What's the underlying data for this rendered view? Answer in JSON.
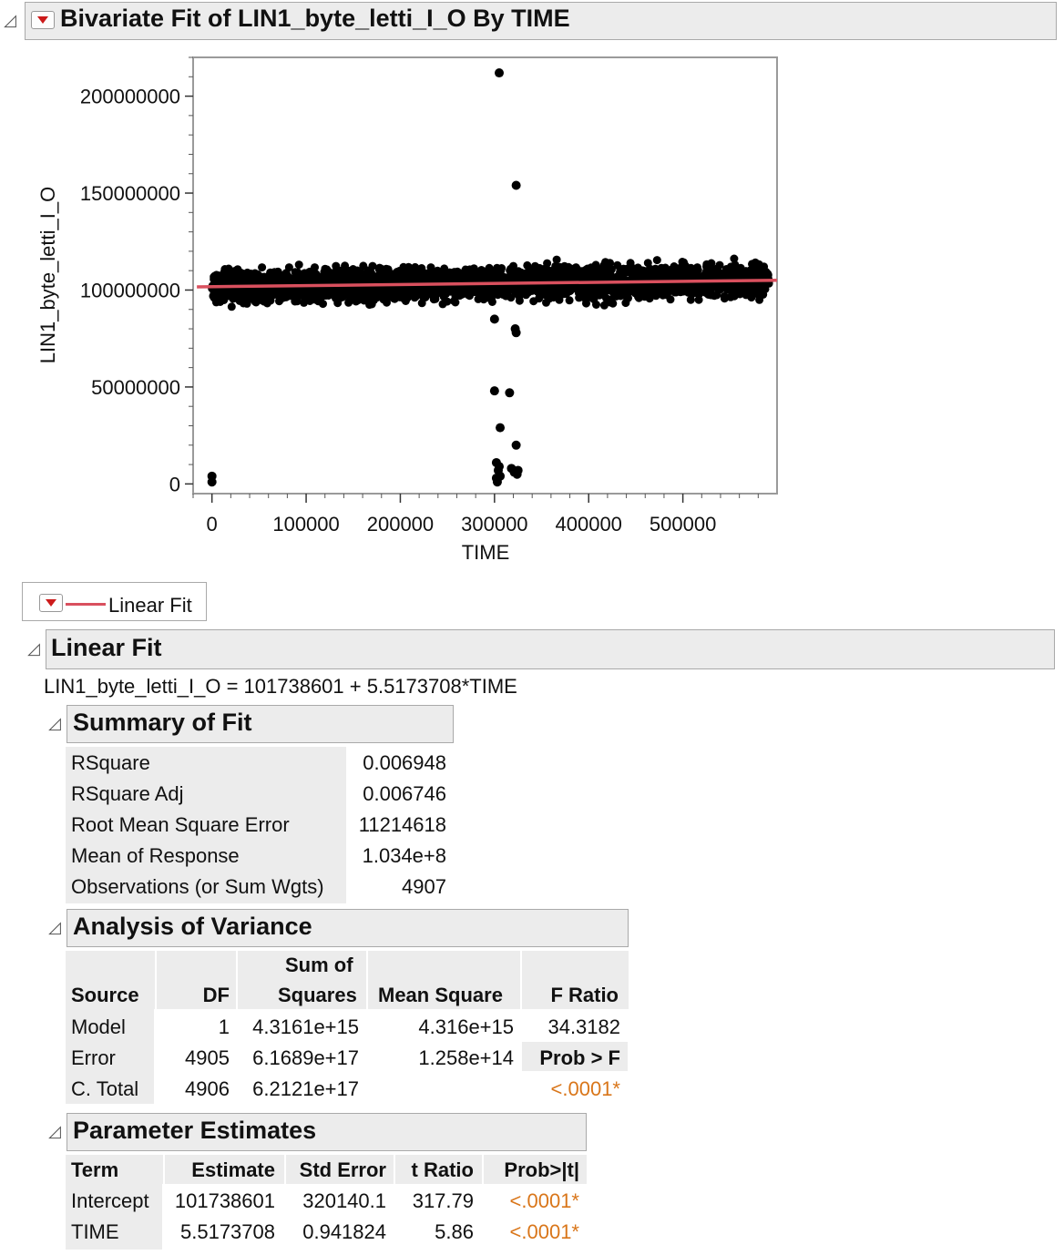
{
  "report": {
    "title": "Bivariate Fit of LIN1_byte_letti_I_O By TIME"
  },
  "chart_data": {
    "type": "scatter",
    "xlabel": "TIME",
    "ylabel": "LIN1_byte_letti_I_O",
    "xlim": [
      -20000,
      600000
    ],
    "ylim": [
      -5000000,
      220000000
    ],
    "x_ticks": [
      0,
      100000,
      200000,
      300000,
      400000,
      500000
    ],
    "x_tick_labels": [
      "0",
      "100000",
      "200000",
      "300000",
      "400000",
      "500000"
    ],
    "y_ticks": [
      0,
      50000000,
      100000000,
      150000000,
      200000000
    ],
    "y_tick_labels": [
      "0",
      "50000000",
      "100000000",
      "150000000",
      "200000000"
    ],
    "points_band": {
      "x_from": 0,
      "x_to": 592000,
      "y_center": 103000000,
      "y_spread": 8500000
    },
    "outliers": [
      {
        "x": 305000,
        "y": 212000000
      },
      {
        "x": 323000,
        "y": 154000000
      },
      {
        "x": 300000,
        "y": 48000000
      },
      {
        "x": 316000,
        "y": 47000000
      },
      {
        "x": 306000,
        "y": 29000000
      },
      {
        "x": 323000,
        "y": 20000000
      },
      {
        "x": 0,
        "y": 4000000
      },
      {
        "x": 0,
        "y": 1000000
      },
      {
        "x": 302000,
        "y": 11000000
      },
      {
        "x": 304000,
        "y": 7000000
      },
      {
        "x": 306000,
        "y": 4000000
      },
      {
        "x": 302000,
        "y": 3000000
      },
      {
        "x": 303000,
        "y": 1000000
      },
      {
        "x": 305000,
        "y": 9000000
      },
      {
        "x": 318000,
        "y": 8000000
      },
      {
        "x": 321000,
        "y": 6000000
      },
      {
        "x": 325000,
        "y": 7000000
      },
      {
        "x": 324000,
        "y": 5000000
      },
      {
        "x": 322000,
        "y": 80000000
      },
      {
        "x": 323000,
        "y": 78000000
      },
      {
        "x": 300000,
        "y": 85000000
      }
    ],
    "fit_line": {
      "intercept": 101738601,
      "slope": 5.5173708,
      "color": "#d9505e"
    }
  },
  "legend": {
    "label": "Linear Fit",
    "color": "#d9505e"
  },
  "linear_fit": {
    "title": "Linear Fit",
    "equation": "LIN1_byte_letti_I_O = 101738601 + 5.5173708*TIME"
  },
  "summary_of_fit": {
    "title": "Summary of Fit",
    "rows": [
      {
        "label": "RSquare",
        "value": "0.006948"
      },
      {
        "label": "RSquare Adj",
        "value": "0.006746"
      },
      {
        "label": "Root Mean Square Error",
        "value": "11214618"
      },
      {
        "label": "Mean of Response",
        "value": "1.034e+8"
      },
      {
        "label": "Observations (or Sum Wgts)",
        "value": "4907"
      }
    ]
  },
  "anova": {
    "title": "Analysis of Variance",
    "headers": {
      "source": "Source",
      "df": "DF",
      "ss_top": "Sum of",
      "ss_bottom": "Squares",
      "ms": "Mean Square",
      "f": "F Ratio"
    },
    "rows": [
      {
        "source": "Model",
        "df": "1",
        "ss": "4.3161e+15",
        "ms": "4.316e+15",
        "f": "34.3182"
      },
      {
        "source": "Error",
        "df": "4905",
        "ss": "6.1689e+17",
        "ms": "1.258e+14",
        "f": "Prob > F"
      },
      {
        "source": "C. Total",
        "df": "4906",
        "ss": "6.2121e+17",
        "ms": "",
        "f": "<.0001*"
      }
    ]
  },
  "parameter_estimates": {
    "title": "Parameter Estimates",
    "headers": {
      "term": "Term",
      "estimate": "Estimate",
      "stderr": "Std Error",
      "t": "t Ratio",
      "p": "Prob>|t|"
    },
    "rows": [
      {
        "term": "Intercept",
        "estimate": "101738601",
        "stderr": "320140.1",
        "t": "317.79",
        "p": "<.0001*"
      },
      {
        "term": "TIME",
        "estimate": "5.5173708",
        "stderr": "0.941824",
        "t": "5.86",
        "p": "<.0001*"
      }
    ]
  }
}
